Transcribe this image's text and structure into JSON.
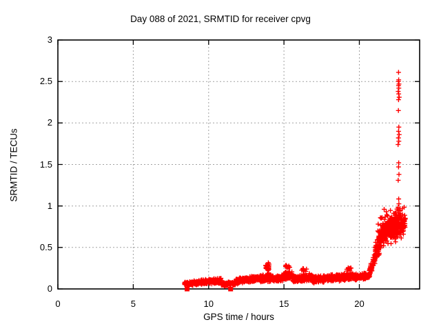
{
  "chart_data": {
    "type": "scatter",
    "title": "Day 088 of 2021, SRMTID for receiver cpvg",
    "xlabel": "GPS time / hours",
    "ylabel": "SRMTID / TECUs",
    "xlim": [
      0,
      24
    ],
    "ylim": [
      0,
      3
    ],
    "xticks": [
      0,
      5,
      10,
      15,
      20
    ],
    "xtick_labels": [
      "0",
      "5",
      "10",
      "15",
      "20"
    ],
    "yticks": [
      0,
      0.5,
      1,
      1.5,
      2,
      2.5,
      3
    ],
    "ytick_labels": [
      "0",
      "0.5",
      "1",
      "1.5",
      "2",
      "2.5",
      "3"
    ],
    "grid": true,
    "legend_position": "none",
    "marker": {
      "shape": "plus",
      "color": "#ff0000",
      "size": 7
    },
    "grid_color": "#a0a0a0",
    "axis_color": "#000000",
    "background_color": "#ffffff",
    "seed": 2021088,
    "band_segments": [
      {
        "x0": 8.4,
        "x1": 9.0,
        "n": 90,
        "y0": 0.055,
        "y1": 0.07,
        "spread": 0.03
      },
      {
        "x0": 9.0,
        "x1": 10.0,
        "n": 150,
        "y0": 0.07,
        "y1": 0.09,
        "spread": 0.04
      },
      {
        "x0": 10.0,
        "x1": 10.85,
        "n": 120,
        "y0": 0.085,
        "y1": 0.1,
        "spread": 0.045
      },
      {
        "x0": 10.85,
        "x1": 11.8,
        "n": 110,
        "y0": 0.055,
        "y1": 0.07,
        "spread": 0.03
      },
      {
        "x0": 11.8,
        "x1": 13.35,
        "n": 230,
        "y0": 0.09,
        "y1": 0.13,
        "spread": 0.048
      },
      {
        "x0": 13.35,
        "x1": 14.15,
        "n": 130,
        "y0": 0.12,
        "y1": 0.14,
        "spread": 0.07
      },
      {
        "x0": 13.75,
        "x1": 14.05,
        "n": 20,
        "y0": 0.26,
        "y1": 0.27,
        "spread": 0.065,
        "min": 0.15
      },
      {
        "x0": 14.15,
        "x1": 14.95,
        "n": 120,
        "y0": 0.12,
        "y1": 0.14,
        "spread": 0.05
      },
      {
        "x0": 14.95,
        "x1": 15.55,
        "n": 95,
        "y0": 0.15,
        "y1": 0.16,
        "spread": 0.062
      },
      {
        "x0": 15.1,
        "x1": 15.4,
        "n": 12,
        "y0": 0.26,
        "y1": 0.27,
        "spread": 0.035,
        "min": 0.18
      },
      {
        "x0": 15.55,
        "x1": 16.9,
        "n": 190,
        "y0": 0.12,
        "y1": 0.14,
        "spread": 0.055
      },
      {
        "x0": 16.1,
        "x1": 16.5,
        "n": 10,
        "y0": 0.225,
        "y1": 0.23,
        "spread": 0.028,
        "min": 0.16
      },
      {
        "x0": 16.9,
        "x1": 18.3,
        "n": 200,
        "y0": 0.11,
        "y1": 0.13,
        "spread": 0.05
      },
      {
        "x0": 18.3,
        "x1": 19.6,
        "n": 190,
        "y0": 0.135,
        "y1": 0.15,
        "spread": 0.055
      },
      {
        "x0": 19.1,
        "x1": 19.45,
        "n": 10,
        "y0": 0.235,
        "y1": 0.24,
        "spread": 0.03,
        "min": 0.17
      },
      {
        "x0": 19.6,
        "x1": 20.65,
        "n": 150,
        "y0": 0.14,
        "y1": 0.16,
        "spread": 0.048
      },
      {
        "x0": 20.65,
        "x1": 21.1,
        "n": 75,
        "y0": 0.2,
        "y1": 0.4,
        "spread": 0.1,
        "min": 0.12
      },
      {
        "x0": 21.05,
        "x1": 21.55,
        "n": 115,
        "y0": 0.45,
        "y1": 0.65,
        "spread": 0.2,
        "min": 0.27,
        "boost": 0.3
      },
      {
        "x0": 21.5,
        "x1": 22.15,
        "n": 155,
        "y0": 0.65,
        "y1": 0.75,
        "spread": 0.22,
        "min": 0.33,
        "boost": 0.3
      },
      {
        "x0": 22.1,
        "x1": 22.75,
        "n": 150,
        "y0": 0.72,
        "y1": 0.82,
        "spread": 0.22,
        "min": 0.4,
        "boost": 0.25
      },
      {
        "x0": 22.7,
        "x1": 23.05,
        "n": 60,
        "y0": 0.75,
        "y1": 0.8,
        "spread": 0.17,
        "min": 0.45,
        "boost": 0.2
      }
    ],
    "outlier_points": [
      [
        22.58,
        1.31
      ],
      [
        22.63,
        1.38
      ],
      [
        22.6,
        1.47
      ],
      [
        22.61,
        1.52
      ],
      [
        22.57,
        1.74
      ],
      [
        22.62,
        1.78
      ],
      [
        22.59,
        1.82
      ],
      [
        22.64,
        1.86
      ],
      [
        22.6,
        1.9
      ],
      [
        22.62,
        1.95
      ],
      [
        22.59,
        2.15
      ],
      [
        22.6,
        2.28
      ],
      [
        22.64,
        2.31
      ],
      [
        22.61,
        2.35
      ],
      [
        22.58,
        2.38
      ],
      [
        22.62,
        2.42
      ],
      [
        22.6,
        2.45
      ],
      [
        22.63,
        2.47
      ],
      [
        22.59,
        2.5
      ],
      [
        22.61,
        2.52
      ],
      [
        22.6,
        2.61
      ]
    ],
    "zero_points": [
      [
        8.57,
        0
      ],
      [
        11.46,
        0
      ]
    ]
  }
}
